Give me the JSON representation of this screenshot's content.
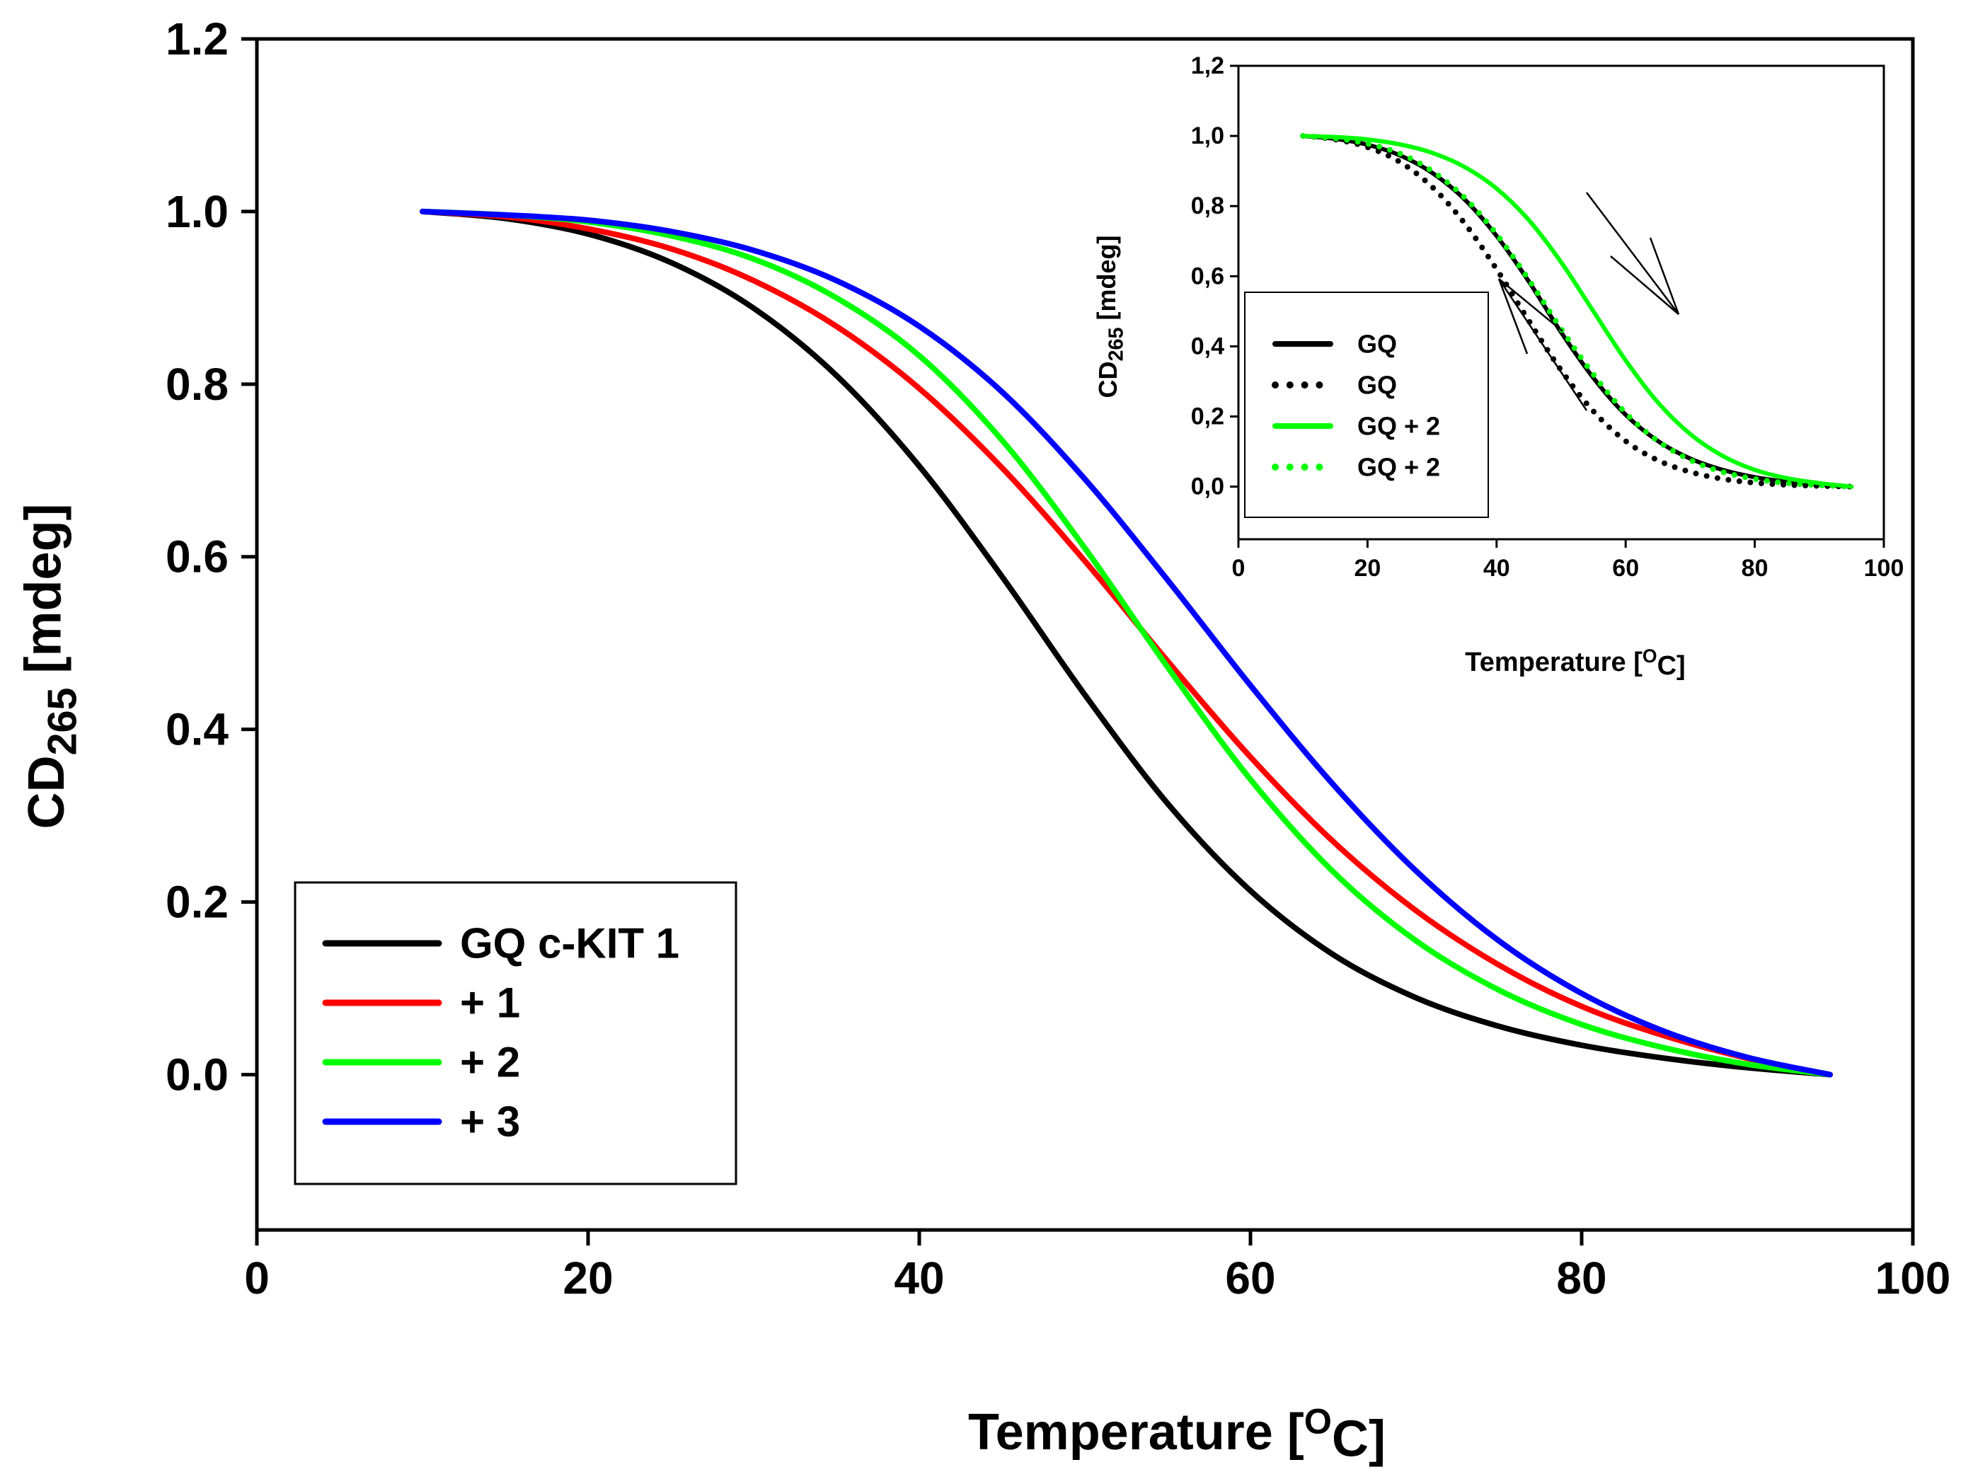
{
  "chart_data": [
    {
      "type": "line",
      "id": "main",
      "title": "",
      "xlabel": "Temperature",
      "xlabel_unit_prefix": "[",
      "xlabel_unit_sup": "O",
      "xlabel_unit_suffix": "C]",
      "ylabel_prefix": "CD",
      "ylabel_sub": "265",
      "ylabel_suffix": " [mdeg]",
      "xlim": [
        0,
        100
      ],
      "ylim": [
        -0.18,
        1.2
      ],
      "xticks": [
        0,
        20,
        40,
        60,
        80,
        100
      ],
      "xtick_labels": [
        "0",
        "20",
        "40",
        "60",
        "80",
        "100"
      ],
      "yticks": [
        0.0,
        0.2,
        0.4,
        0.6,
        0.8,
        1.0,
        1.2
      ],
      "ytick_labels": [
        "0.0",
        "0.2",
        "0.4",
        "0.6",
        "0.8",
        "1.0",
        "1.2"
      ],
      "grid": false,
      "legend_position": "bottom-left",
      "x": [
        10,
        15,
        20,
        25,
        30,
        35,
        40,
        45,
        50,
        55,
        60,
        65,
        70,
        75,
        80,
        85,
        90,
        95
      ],
      "series": [
        {
          "name": "GQ c-KIT 1",
          "color": "#000000",
          "style": "solid",
          "values": [
            1.0,
            0.992,
            0.974,
            0.941,
            0.888,
            0.81,
            0.705,
            0.577,
            0.44,
            0.314,
            0.213,
            0.139,
            0.089,
            0.056,
            0.034,
            0.019,
            0.008,
            0.0
          ]
        },
        {
          "name": "+ 1",
          "color": "#ff0000",
          "style": "solid",
          "values": [
            1.0,
            0.994,
            0.98,
            0.957,
            0.92,
            0.867,
            0.795,
            0.703,
            0.595,
            0.479,
            0.368,
            0.27,
            0.19,
            0.127,
            0.079,
            0.045,
            0.019,
            0.0
          ]
        },
        {
          "name": "+ 2",
          "color": "#00ff00",
          "style": "solid",
          "values": [
            1.0,
            0.996,
            0.988,
            0.972,
            0.945,
            0.9,
            0.833,
            0.735,
            0.61,
            0.472,
            0.342,
            0.235,
            0.155,
            0.098,
            0.058,
            0.031,
            0.012,
            0.0
          ]
        },
        {
          "name": "+ 3",
          "color": "#0000ff",
          "style": "solid",
          "values": [
            1.0,
            0.996,
            0.99,
            0.977,
            0.955,
            0.92,
            0.867,
            0.791,
            0.69,
            0.573,
            0.451,
            0.336,
            0.236,
            0.155,
            0.094,
            0.05,
            0.02,
            0.0
          ]
        }
      ]
    },
    {
      "type": "line",
      "id": "inset",
      "title": "",
      "xlabel": "Temperature",
      "xlabel_unit_prefix": "[",
      "xlabel_unit_sup": "O",
      "xlabel_unit_suffix": "C]",
      "ylabel_prefix": "CD",
      "ylabel_sub": "265",
      "ylabel_suffix": " [mdeg]",
      "xlim": [
        0,
        100
      ],
      "ylim": [
        -0.15,
        1.2
      ],
      "xticks": [
        0,
        20,
        40,
        60,
        80,
        100
      ],
      "xtick_labels": [
        "0",
        "20",
        "40",
        "60",
        "80",
        "100"
      ],
      "yticks": [
        0.0,
        0.2,
        0.4,
        0.6,
        0.8,
        1.0,
        1.2
      ],
      "ytick_labels": [
        "0,0",
        "0,2",
        "0,4",
        "0,6",
        "0,8",
        "1,0",
        "1,2"
      ],
      "grid": false,
      "legend_position": "bottom-left",
      "x": [
        10,
        15,
        20,
        25,
        30,
        35,
        40,
        45,
        50,
        55,
        60,
        65,
        70,
        75,
        80,
        85,
        90,
        95
      ],
      "series": [
        {
          "name": "GQ",
          "color": "#000000",
          "style": "solid",
          "values": [
            1.0,
            0.992,
            0.975,
            0.945,
            0.895,
            0.82,
            0.715,
            0.585,
            0.44,
            0.31,
            0.205,
            0.13,
            0.08,
            0.048,
            0.027,
            0.014,
            0.006,
            0.0
          ]
        },
        {
          "name": "GQ",
          "color": "#000000",
          "style": "dotted",
          "values": [
            1.0,
            0.99,
            0.968,
            0.926,
            0.855,
            0.752,
            0.62,
            0.473,
            0.332,
            0.215,
            0.13,
            0.075,
            0.042,
            0.022,
            0.011,
            0.005,
            0.002,
            0.0
          ]
        },
        {
          "name": "GQ + 2",
          "color": "#00ff00",
          "style": "solid",
          "values": [
            1.0,
            0.997,
            0.99,
            0.976,
            0.952,
            0.912,
            0.85,
            0.76,
            0.64,
            0.5,
            0.36,
            0.24,
            0.15,
            0.088,
            0.048,
            0.024,
            0.01,
            0.0
          ]
        },
        {
          "name": "GQ + 2",
          "color": "#00ff00",
          "style": "dotted",
          "values": [
            1.0,
            0.993,
            0.978,
            0.95,
            0.9,
            0.825,
            0.72,
            0.59,
            0.45,
            0.32,
            0.21,
            0.13,
            0.076,
            0.042,
            0.022,
            0.01,
            0.004,
            0.0
          ]
        }
      ],
      "annotations": [
        "heating arrow (down-right)",
        "cooling arrow (up-left)"
      ]
    }
  ]
}
